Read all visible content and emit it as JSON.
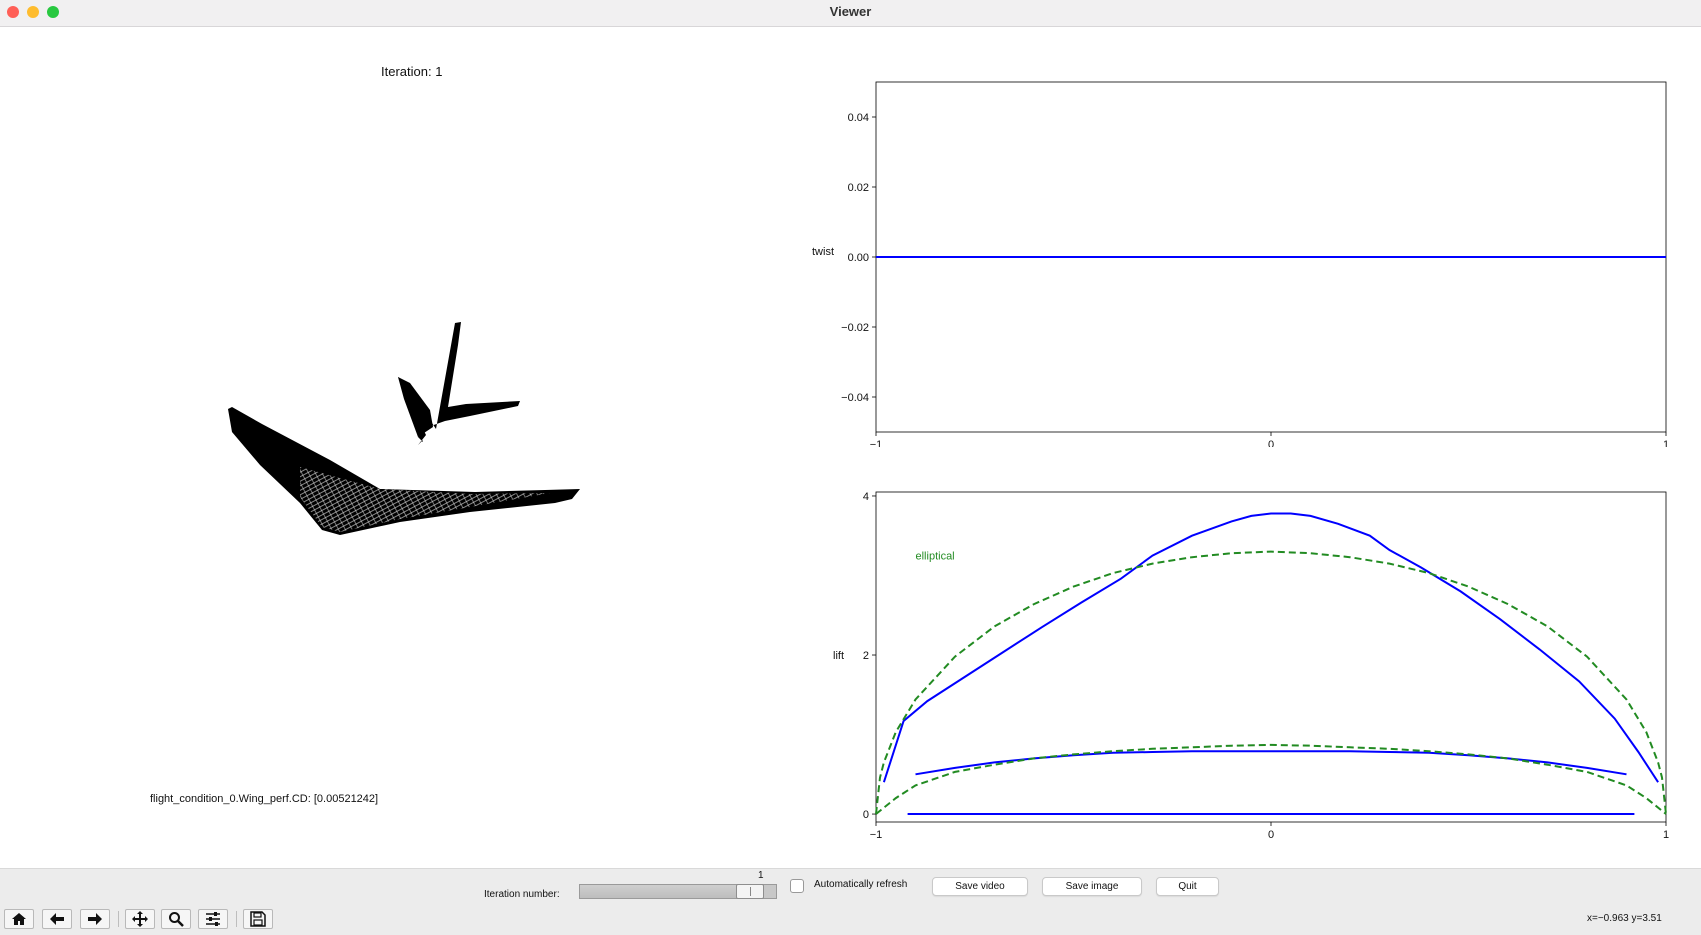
{
  "window": {
    "title": "Viewer"
  },
  "canvas": {
    "iteration_label": "Iteration: 1",
    "cd_label": "flight_condition_0.Wing_perf.CD: [0.00521242]",
    "mesh_view": "3-D wing and tail mesh rendering"
  },
  "chart_data": [
    {
      "type": "line",
      "ylabel": "twist",
      "xlim": [
        -1,
        1
      ],
      "ylim": [
        -0.05,
        0.05
      ],
      "xticks": [
        "−1",
        "0",
        "1"
      ],
      "yticks": [
        {
          "v": 0.04,
          "label": "0.04"
        },
        {
          "v": 0.02,
          "label": "0.02"
        },
        {
          "v": 0.0,
          "label": "0.00"
        },
        {
          "v": -0.02,
          "label": "−0.02"
        },
        {
          "v": -0.04,
          "label": "−0.04"
        }
      ],
      "series": [
        {
          "color": "#0000ff",
          "style": "solid",
          "x": [
            -1,
            1
          ],
          "y": [
            0,
            0
          ]
        }
      ]
    },
    {
      "type": "line",
      "ylabel": "lift",
      "xlim": [
        -1,
        1
      ],
      "ylim": [
        -0.1,
        4.05
      ],
      "xticks": [
        "−1",
        "0",
        "1"
      ],
      "yticks": [
        {
          "v": 4,
          "label": "4"
        },
        {
          "v": 2,
          "label": "2"
        },
        {
          "v": 0,
          "label": "0"
        }
      ],
      "annotation": {
        "text": "elliptical",
        "color": "#228b22",
        "x": -0.9,
        "y": 3.2
      },
      "series": [
        {
          "color": "#0000ff",
          "style": "solid",
          "x": [
            -0.98,
            -0.93,
            -0.87,
            -0.78,
            -0.68,
            -0.58,
            -0.48,
            -0.38,
            -0.3,
            -0.2,
            -0.1,
            -0.05,
            0,
            0.05,
            0.1,
            0.17,
            0.25,
            0.3,
            0.38,
            0.48,
            0.58,
            0.68,
            0.78,
            0.87,
            0.93,
            0.98
          ],
          "y": [
            0.4,
            1.17,
            1.42,
            1.71,
            2.03,
            2.35,
            2.66,
            2.96,
            3.25,
            3.5,
            3.68,
            3.75,
            3.78,
            3.78,
            3.75,
            3.65,
            3.5,
            3.32,
            3.1,
            2.8,
            2.45,
            2.07,
            1.67,
            1.2,
            0.78,
            0.4
          ]
        },
        {
          "color": "#228b22",
          "style": "dashed",
          "x": [
            -1,
            -0.99,
            -0.98,
            -0.95,
            -0.9,
            -0.8,
            -0.7,
            -0.6,
            -0.5,
            -0.4,
            -0.3,
            -0.2,
            -0.1,
            0,
            0.1,
            0.2,
            0.3,
            0.4,
            0.5,
            0.6,
            0.7,
            0.8,
            0.9,
            0.95,
            0.98,
            0.99,
            1
          ],
          "y": [
            0,
            0.46,
            0.65,
            1.03,
            1.44,
            1.98,
            2.36,
            2.64,
            2.86,
            3.03,
            3.15,
            3.23,
            3.28,
            3.3,
            3.28,
            3.23,
            3.15,
            3.03,
            2.86,
            2.64,
            2.36,
            1.98,
            1.44,
            1.03,
            0.65,
            0.46,
            0
          ]
        },
        {
          "color": "#0000ff",
          "style": "solid",
          "x": [
            -0.9,
            -0.8,
            -0.7,
            -0.6,
            -0.5,
            -0.4,
            -0.3,
            -0.2,
            -0.1,
            0,
            0.1,
            0.2,
            0.3,
            0.4,
            0.5,
            0.6,
            0.7,
            0.8,
            0.9
          ],
          "y": [
            0.5,
            0.58,
            0.65,
            0.7,
            0.74,
            0.77,
            0.78,
            0.79,
            0.79,
            0.79,
            0.79,
            0.79,
            0.78,
            0.77,
            0.74,
            0.7,
            0.65,
            0.58,
            0.5
          ]
        },
        {
          "color": "#228b22",
          "style": "dashed",
          "x": [
            -1,
            -0.95,
            -0.9,
            -0.8,
            -0.7,
            -0.6,
            -0.5,
            -0.4,
            -0.3,
            -0.2,
            -0.1,
            0,
            0.1,
            0.2,
            0.3,
            0.4,
            0.5,
            0.6,
            0.7,
            0.8,
            0.9,
            0.95,
            1
          ],
          "y": [
            0,
            0.2,
            0.36,
            0.53,
            0.62,
            0.7,
            0.75,
            0.79,
            0.82,
            0.84,
            0.86,
            0.87,
            0.86,
            0.84,
            0.82,
            0.79,
            0.75,
            0.7,
            0.62,
            0.53,
            0.36,
            0.2,
            0
          ]
        },
        {
          "color": "#0000ff",
          "style": "solid",
          "x": [
            -0.92,
            0.92
          ],
          "y": [
            0,
            0
          ]
        }
      ]
    }
  ],
  "controls": {
    "iteration_number_label": "Iteration number:",
    "slider_value": "1",
    "slider_fraction": 0.93,
    "auto_refresh_label": "Automatically refresh",
    "auto_refresh_checked": false,
    "save_video": "Save video",
    "save_image": "Save image",
    "quit": "Quit"
  },
  "toolbar": {
    "icons": [
      "home-icon",
      "back-arrow-icon",
      "forward-arrow-icon",
      "pan-move-icon",
      "zoom-magnifier-icon",
      "configure-subplots-icon",
      "save-disk-icon"
    ],
    "coords": "x=−0.963 y=3.51"
  }
}
